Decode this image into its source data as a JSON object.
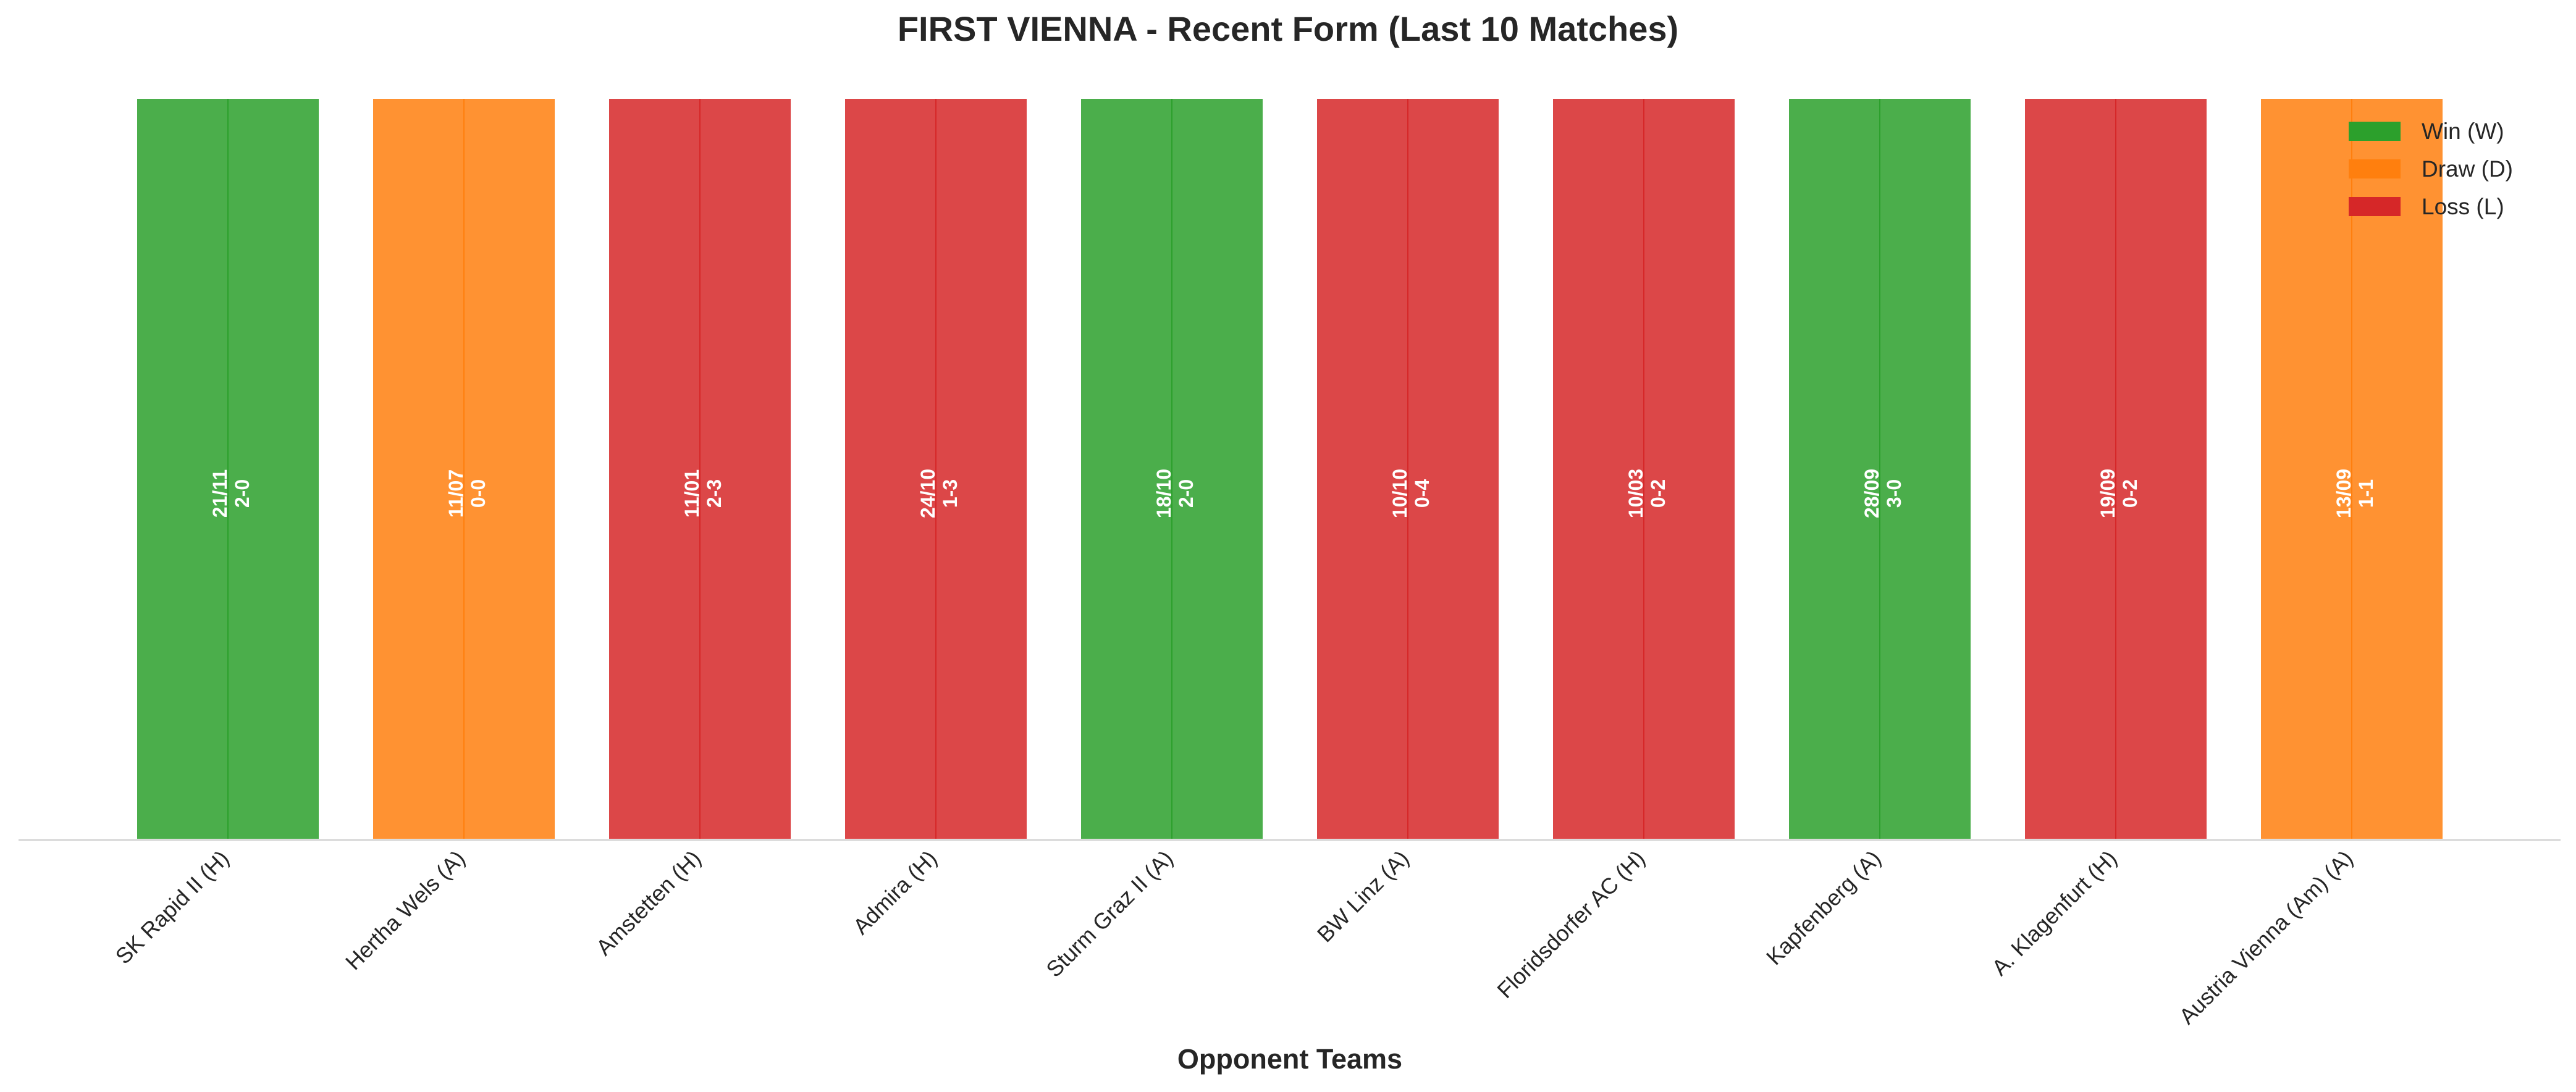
{
  "chart_data": {
    "type": "bar",
    "title": "FIRST VIENNA - Recent Form (Last 10 Matches)",
    "xlabel": "Opponent Teams",
    "ylabel": "",
    "grid": false,
    "legend_position": "top-right",
    "legend": [
      {
        "key": "W",
        "label": "Win (W)",
        "color": "#2ca02c"
      },
      {
        "key": "D",
        "label": "Draw (D)",
        "color": "#ff7f0e"
      },
      {
        "key": "L",
        "label": "Loss (L)",
        "color": "#d62728"
      }
    ],
    "categories": [
      "SK Rapid II (H)",
      "Hertha Wels (A)",
      "Amstetten (H)",
      "Admira (H)",
      "Sturm Graz II (A)",
      "BW Linz (A)",
      "Floridsdorfer AC (H)",
      "Kapfenberg (A)",
      "A. Klagenfurt (H)",
      "Austria Vienna (Am) (A)"
    ],
    "values": [
      1,
      1,
      1,
      1,
      1,
      1,
      1,
      1,
      1,
      1
    ],
    "results": [
      "W",
      "D",
      "L",
      "L",
      "W",
      "L",
      "L",
      "W",
      "L",
      "D"
    ],
    "dates": [
      "21/11",
      "11/07",
      "11/01",
      "24/10",
      "18/10",
      "10/10",
      "10/03",
      "28/09",
      "19/09",
      "13/09"
    ],
    "scores": [
      "2-0",
      "0-0",
      "2-3",
      "1-3",
      "2-0",
      "0-4",
      "0-2",
      "3-0",
      "0-2",
      "1-1"
    ]
  }
}
